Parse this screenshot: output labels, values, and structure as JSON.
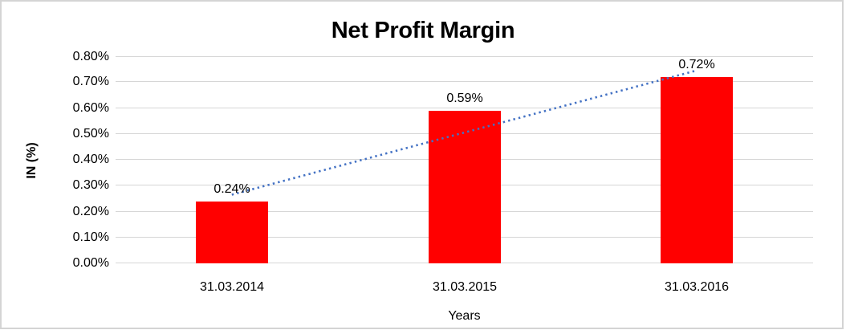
{
  "window": {
    "background": "#FFFFFF",
    "frame_border_color": "#D4D4D4"
  },
  "chart_data": {
    "type": "bar",
    "title": "Net Profit Margin",
    "categories": [
      "31.03.2014",
      "31.03.2015",
      "31.03.2016"
    ],
    "series": [
      {
        "name": "Net Profit Margin",
        "values": [
          0.24,
          0.59,
          0.72
        ]
      }
    ],
    "data_labels": [
      "0.24%",
      "0.59%",
      "0.72%"
    ],
    "xlabel": "Years",
    "ylabel": "IN (%)",
    "ylim": [
      0,
      0.8
    ],
    "ytick_step": 0.1,
    "ytick_labels": [
      "0.00%",
      "0.10%",
      "0.20%",
      "0.30%",
      "0.40%",
      "0.50%",
      "0.60%",
      "0.70%",
      "0.80%"
    ],
    "grid": true,
    "legend": "none",
    "bar_color": "#FF0000",
    "gridline_color": "#D6D6D6",
    "text_color": "#000000",
    "trendline": {
      "type": "linear",
      "style": "dotted",
      "color": "#4472C4",
      "start_value": 0.265,
      "end_value": 0.745
    }
  }
}
